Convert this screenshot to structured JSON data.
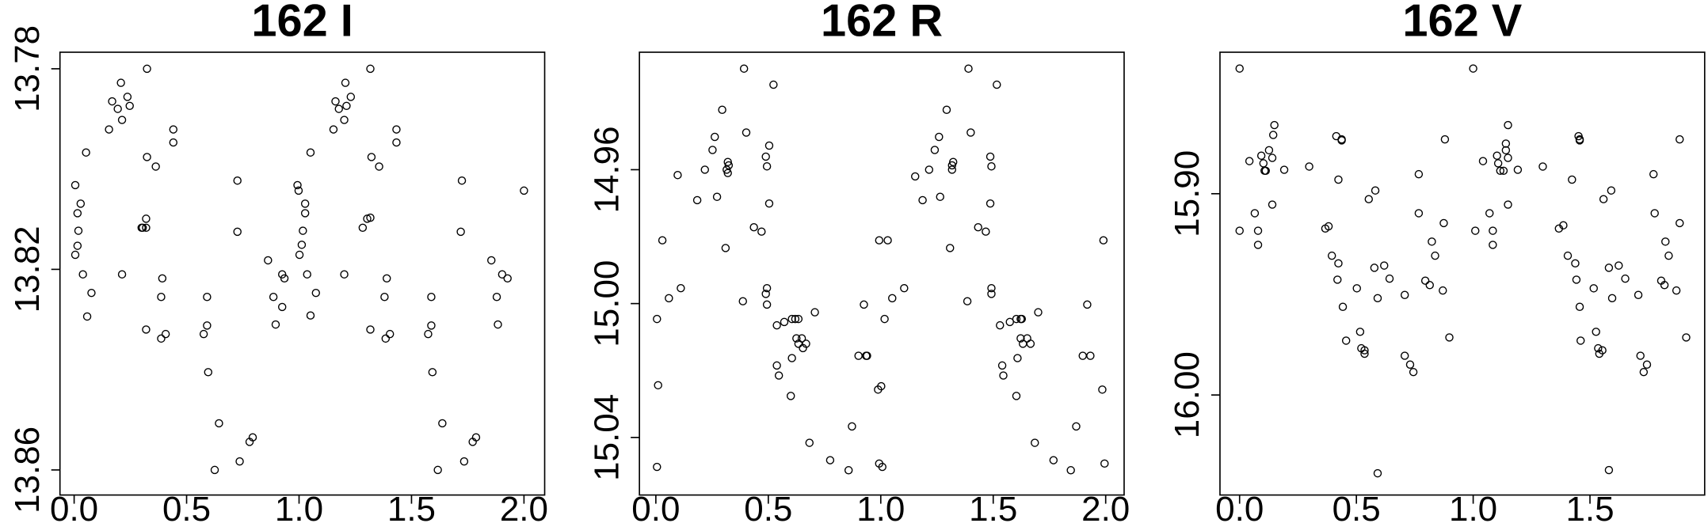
{
  "chart_data": [
    {
      "type": "scatter",
      "title": "162 I",
      "x": [
        0.005,
        0.015,
        0.029,
        0.019,
        0.015,
        0.005,
        0.039,
        0.058,
        0.077,
        0.053,
        0.155,
        0.169,
        0.194,
        0.208,
        0.213,
        0.237,
        0.247,
        0.213,
        0.3,
        0.32,
        0.32,
        0.305,
        0.324,
        0.324,
        0.363,
        0.32,
        0.392,
        0.387,
        0.387,
        0.407,
        0.441,
        0.441,
        0.591,
        0.591,
        0.576,
        0.596,
        0.644,
        0.625,
        0.726,
        0.726,
        0.736,
        0.78,
        0.794,
        0.862,
        0.886,
        0.896,
        0.925,
        0.935,
        0.925,
        0.993,
        0.998,
        1.002,
        1.012,
        1.017,
        1.027,
        1.027,
        1.036,
        1.051,
        1.051,
        1.075,
        1.153,
        1.162,
        1.177,
        1.206,
        1.201,
        1.23,
        1.211,
        1.201,
        1.283,
        1.303,
        1.317,
        1.317,
        1.322,
        1.356,
        1.317,
        1.39,
        1.38,
        1.385,
        1.404,
        1.433,
        1.433,
        1.588,
        1.588,
        1.574,
        1.593,
        1.637,
        1.617,
        1.724,
        1.719,
        1.734,
        1.772,
        1.787,
        1.855,
        1.879,
        1.884,
        1.903,
        1.927,
        2.0
      ],
      "values": [
        13.8032,
        13.8088,
        13.8069,
        13.8123,
        13.8153,
        13.8171,
        13.821,
        13.8294,
        13.8247,
        13.7967,
        13.7921,
        13.7865,
        13.788,
        13.7828,
        13.7902,
        13.7856,
        13.7874,
        13.821,
        13.8117,
        13.8099,
        13.8117,
        13.8117,
        13.78,
        13.7976,
        13.7995,
        13.832,
        13.8218,
        13.8255,
        13.8338,
        13.8329,
        13.7921,
        13.7947,
        13.8255,
        13.8312,
        13.8329,
        13.8405,
        13.8507,
        13.86,
        13.8023,
        13.8125,
        13.8583,
        13.8544,
        13.8535,
        13.8182,
        13.8255,
        13.831,
        13.821,
        13.8218,
        13.8275,
        13.8032,
        13.8043,
        13.8171,
        13.8151,
        13.8123,
        13.8069,
        13.8088,
        13.821,
        13.7967,
        13.8292,
        13.8247,
        13.7921,
        13.7865,
        13.788,
        13.7828,
        13.7902,
        13.7856,
        13.7874,
        13.821,
        13.8117,
        13.8099,
        13.8097,
        13.78,
        13.7976,
        13.7995,
        13.832,
        13.8218,
        13.8255,
        13.8338,
        13.8329,
        13.7921,
        13.7947,
        13.8255,
        13.8312,
        13.8329,
        13.8405,
        13.8507,
        13.86,
        13.8023,
        13.8125,
        13.8583,
        13.8544,
        13.8535,
        13.8182,
        13.8255,
        13.831,
        13.821,
        13.8218,
        13.8043
      ],
      "xlim": [
        -0.063,
        2.092
      ],
      "ylim": [
        13.865,
        13.7767
      ],
      "xticks": [
        {
          "value": 0,
          "label": "0.0"
        },
        {
          "value": 0.5,
          "label": "0.5"
        },
        {
          "value": 1,
          "label": "1.0"
        },
        {
          "value": 1.5,
          "label": "1.5"
        },
        {
          "value": 2,
          "label": "2.0"
        }
      ],
      "yticks": [
        13.78,
        13.82,
        13.86
      ]
    },
    {
      "type": "scatter",
      "title": "162 R",
      "x": [
        0.005,
        0.01,
        0.005,
        0.029,
        0.058,
        0.097,
        0.111,
        0.184,
        0.218,
        0.252,
        0.262,
        0.272,
        0.295,
        0.31,
        0.315,
        0.32,
        0.324,
        0.32,
        0.392,
        0.402,
        0.387,
        0.436,
        0.47,
        0.489,
        0.494,
        0.504,
        0.504,
        0.494,
        0.489,
        0.494,
        0.523,
        0.538,
        0.538,
        0.547,
        0.571,
        0.605,
        0.62,
        0.634,
        0.625,
        0.634,
        0.649,
        0.654,
        0.668,
        0.605,
        0.6,
        0.683,
        0.707,
        0.775,
        0.857,
        0.872,
        0.901,
        0.925,
        0.935,
        0.939,
        0.988,
        1.002,
        0.993,
        1.031,
        0.993,
        1.007,
        1.017,
        1.051,
        1.104,
        1.153,
        1.186,
        1.215,
        1.24,
        1.259,
        1.264,
        1.293,
        1.308,
        1.317,
        1.317,
        1.322,
        1.39,
        1.4,
        1.385,
        1.433,
        1.467,
        1.487,
        1.492,
        1.487,
        1.492,
        1.492,
        1.516,
        1.53,
        1.54,
        1.545,
        1.574,
        1.603,
        1.622,
        1.627,
        1.622,
        1.632,
        1.651,
        1.666,
        1.608,
        1.603,
        1.685,
        1.7,
        1.768,
        1.845,
        1.869,
        1.898,
        1.918,
        1.932,
        1.985,
        1.99,
        1.995
      ],
      "values": [
        15.0046,
        15.0244,
        15.0488,
        14.9811,
        14.9984,
        14.9616,
        14.9954,
        14.9691,
        14.96,
        14.9541,
        14.9502,
        14.9681,
        14.9421,
        14.9834,
        14.96,
        14.961,
        14.9587,
        14.9577,
        14.9298,
        14.9489,
        14.9993,
        14.9772,
        14.9785,
        14.9561,
        14.959,
        14.9528,
        14.9701,
        14.9954,
        14.9971,
        15.0003,
        14.9346,
        15.0065,
        15.0185,
        15.0215,
        15.0055,
        15.0046,
        15.0046,
        15.0046,
        15.0104,
        15.012,
        15.0104,
        15.0133,
        15.012,
        15.0163,
        15.0276,
        15.0416,
        15.0026,
        15.0468,
        15.0498,
        15.0367,
        15.0156,
        15.0003,
        15.0156,
        15.0156,
        15.0257,
        15.0247,
        14.9811,
        14.9811,
        15.0478,
        15.0488,
        15.0046,
        14.9984,
        14.9954,
        14.962,
        14.9691,
        14.96,
        14.9541,
        14.9502,
        14.9681,
        14.9421,
        14.9834,
        14.96,
        14.9587,
        14.9577,
        14.9298,
        14.9489,
        14.9993,
        14.9772,
        14.9785,
        14.9561,
        14.959,
        14.9701,
        14.9954,
        14.9971,
        14.9346,
        15.0065,
        15.0185,
        15.0215,
        15.0055,
        15.0046,
        15.0046,
        15.0046,
        15.0104,
        15.012,
        15.0104,
        15.012,
        15.0163,
        15.0276,
        15.0416,
        15.0026,
        15.0468,
        15.0498,
        15.0367,
        15.0156,
        15.0003,
        15.0156,
        15.0257,
        14.9811,
        15.0478
      ],
      "xlim": [
        -0.073,
        2.082
      ],
      "ylim": [
        15.0572,
        14.9249
      ],
      "xticks": [
        {
          "value": 0,
          "label": "0.0"
        },
        {
          "value": 0.5,
          "label": "0.5"
        },
        {
          "value": 1,
          "label": "1.0"
        },
        {
          "value": 1.5,
          "label": "1.5"
        },
        {
          "value": 2,
          "label": "2.0"
        }
      ],
      "yticks": [
        14.96,
        {
          "value": 15,
          "label": "15.00"
        },
        15.04
      ]
    },
    {
      "type": "scatter",
      "title": "162 V",
      "x": [
        0,
        0,
        0.042,
        0.065,
        0.079,
        0.079,
        0.093,
        0.102,
        0.107,
        0.112,
        0.126,
        0.14,
        0.14,
        0.144,
        0.149,
        0.191,
        0.298,
        0.367,
        0.381,
        0.395,
        0.414,
        0.423,
        0.423,
        0.419,
        0.437,
        0.437,
        0.442,
        0.456,
        0.502,
        0.516,
        0.521,
        0.535,
        0.535,
        0.553,
        0.577,
        0.591,
        0.581,
        0.591,
        0.619,
        0.642,
        0.707,
        0.707,
        0.73,
        0.744,
        0.767,
        0.767,
        0.795,
        0.814,
        0.823,
        0.837,
        0.87,
        0.874,
        0.879,
        0.898,
        1.0,
        1.009,
        1.042,
        1.07,
        1.084,
        1.084,
        1.102,
        1.107,
        1.116,
        1.13,
        1.14,
        1.149,
        1.149,
        1.149,
        1.14,
        1.191,
        1.298,
        1.367,
        1.386,
        1.405,
        1.423,
        1.437,
        1.442,
        1.451,
        1.456,
        1.456,
        1.456,
        1.46,
        1.516,
        1.526,
        1.535,
        1.54,
        1.553,
        1.558,
        1.581,
        1.591,
        1.595,
        1.623,
        1.651,
        1.581,
        1.707,
        1.716,
        1.73,
        1.744,
        1.772,
        1.777,
        1.805,
        1.819,
        1.823,
        1.837,
        1.87,
        1.884,
        1.884,
        1.912
      ],
      "values": [
        15.8378,
        15.9184,
        15.8838,
        15.9097,
        15.9184,
        15.9254,
        15.8811,
        15.8849,
        15.8886,
        15.8886,
        15.8784,
        15.9054,
        15.8822,
        15.8708,
        15.8659,
        15.8881,
        15.8865,
        15.9173,
        15.9162,
        15.9308,
        15.8714,
        15.893,
        15.9346,
        15.9427,
        15.8735,
        15.873,
        15.9562,
        15.973,
        15.947,
        15.9686,
        15.9768,
        15.9795,
        15.9778,
        15.9027,
        15.9368,
        16.0389,
        15.8984,
        15.9519,
        15.9357,
        15.9422,
        15.9503,
        15.9805,
        15.9849,
        15.9886,
        15.8903,
        15.9097,
        15.9432,
        15.9454,
        15.9238,
        15.9308,
        15.9481,
        15.9146,
        15.873,
        15.9714,
        15.8378,
        15.9184,
        15.8838,
        15.9097,
        15.9254,
        15.9184,
        15.8811,
        15.8849,
        15.8886,
        15.8886,
        15.8751,
        15.9054,
        15.8822,
        15.8659,
        15.8784,
        15.8881,
        15.8865,
        15.9173,
        15.9157,
        15.9308,
        15.893,
        15.9346,
        15.9427,
        15.8714,
        15.8735,
        15.873,
        15.9562,
        15.973,
        15.947,
        15.9686,
        15.9768,
        15.9795,
        15.9778,
        15.9027,
        15.9368,
        15.8984,
        15.9519,
        15.9357,
        15.9422,
        16.0373,
        15.9503,
        15.9805,
        15.9886,
        15.9849,
        15.8903,
        15.9097,
        15.9432,
        15.9454,
        15.9238,
        15.9308,
        15.9481,
        15.9146,
        15.873,
        15.9714
      ],
      "xlim": [
        -0.084,
        1.991
      ],
      "ylim": [
        16.0497,
        15.8297
      ],
      "xticks": [
        {
          "value": 0,
          "label": "0.0"
        },
        {
          "value": 0.5,
          "label": "0.5"
        },
        {
          "value": 1,
          "label": "1.0"
        },
        {
          "value": 1.5,
          "label": "1.5"
        }
      ],
      "yticks": [
        {
          "value": 15.9,
          "label": "15.90"
        },
        {
          "value": 16,
          "label": "16.00"
        }
      ]
    }
  ]
}
